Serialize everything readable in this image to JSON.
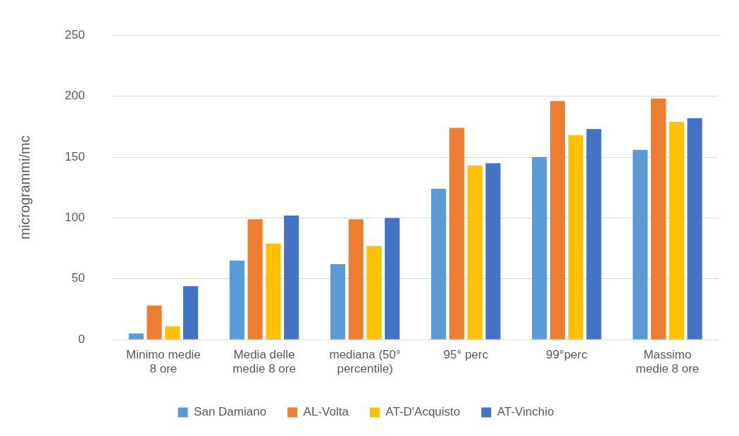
{
  "chart_data": {
    "type": "bar",
    "ylabel": "microgrammi/mc",
    "categories": [
      "Minimo medie 8 ore",
      "Media delle medie 8 ore",
      "mediana (50° percentile)",
      "95° perc",
      "99°perc",
      "Massimo medie 8 ore"
    ],
    "series": [
      {
        "name": "San Damiano",
        "color": "#5b9bd5",
        "values": [
          5,
          65,
          62,
          124,
          150,
          156
        ]
      },
      {
        "name": "AL-Volta",
        "color": "#ed7d31",
        "values": [
          28,
          99,
          99,
          174,
          196,
          198
        ]
      },
      {
        "name": "AT-D'Acquisto",
        "color": "#ffc000",
        "values": [
          11,
          79,
          77,
          143,
          168,
          179
        ]
      },
      {
        "name": "AT-Vinchio",
        "color": "#4472c4",
        "values": [
          44,
          102,
          100,
          145,
          173,
          182
        ]
      }
    ],
    "ylim": [
      0,
      250
    ],
    "yticks": [
      0,
      50,
      100,
      150,
      200,
      250
    ],
    "grid": "y",
    "legend": "bottom"
  }
}
